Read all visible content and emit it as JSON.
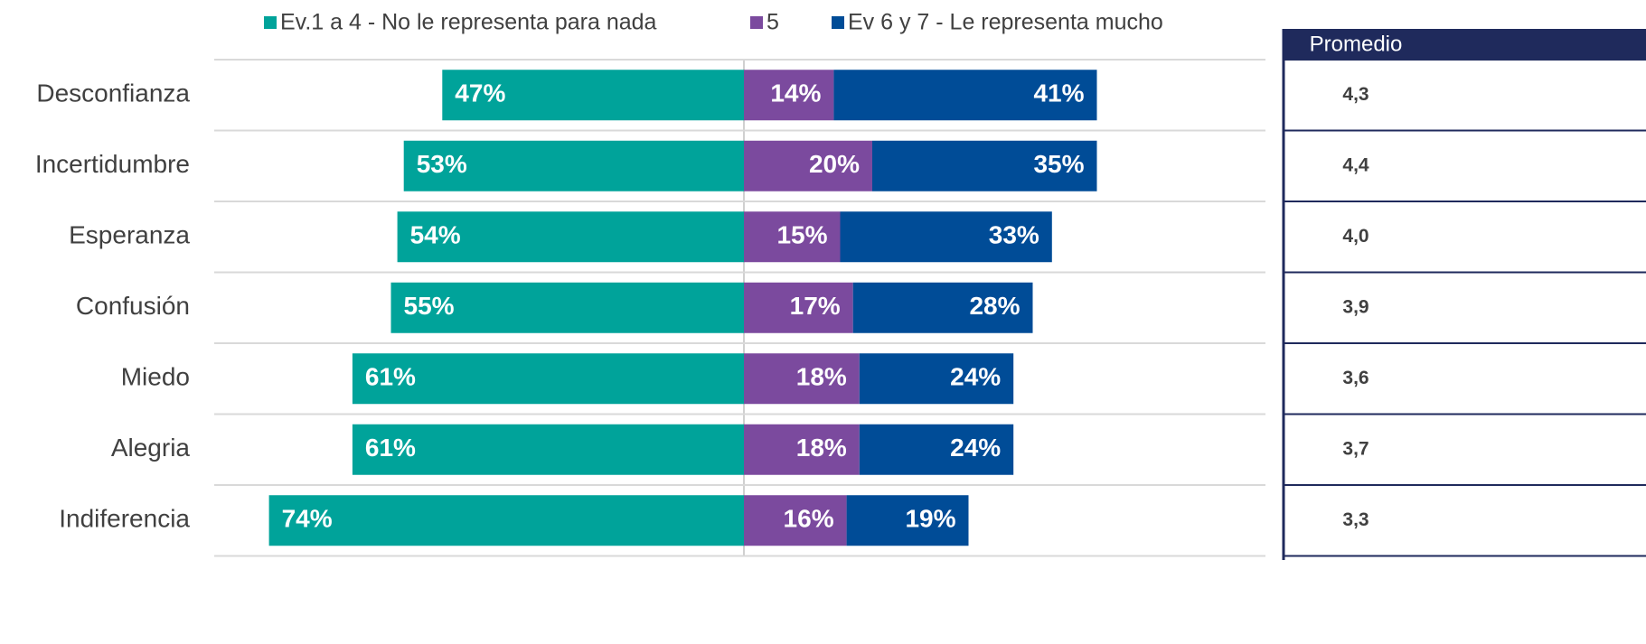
{
  "chart_data": {
    "type": "diverging_bar",
    "categories": [
      "Desconfianza",
      "Incertidumbre",
      "Esperanza",
      "Confusión",
      "Miedo",
      "Alegria",
      "Indiferencia"
    ],
    "series": [
      {
        "name": "Ev.1 a 4 - No le representa para nada",
        "color": "#00a39a",
        "values": [
          47,
          53,
          54,
          55,
          61,
          61,
          74
        ],
        "value_labels": [
          "47%",
          "53%",
          "54%",
          "55%",
          "61%",
          "61%",
          "74%"
        ]
      },
      {
        "name": "5",
        "color": "#7b4a9e",
        "values": [
          14,
          20,
          15,
          17,
          18,
          18,
          16
        ],
        "value_labels": [
          "14%",
          "20%",
          "15%",
          "17%",
          "18%",
          "18%",
          "16%"
        ]
      },
      {
        "name": "Ev 6 y 7 - Le representa mucho",
        "color": "#004c97",
        "values": [
          41,
          35,
          33,
          28,
          24,
          24,
          19
        ],
        "value_labels": [
          "41%",
          "35%",
          "33%",
          "28%",
          "24%",
          "24%",
          "19%"
        ]
      }
    ]
  },
  "table": {
    "header": "Promedio",
    "rows": [
      "4,3",
      "4,4",
      "4,0",
      "3,9",
      "3,6",
      "3,7",
      "3,3"
    ]
  }
}
